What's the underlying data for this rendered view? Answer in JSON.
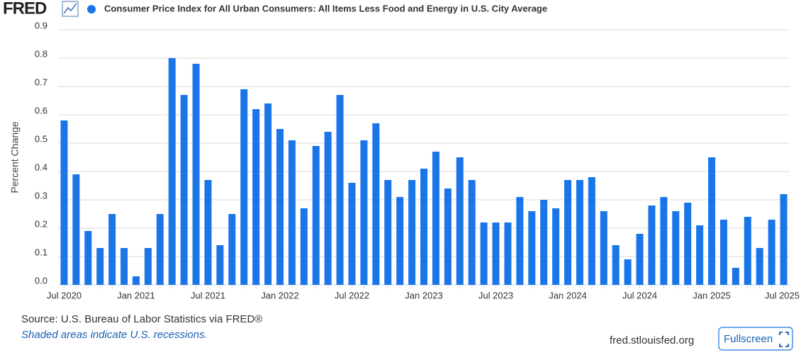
{
  "header": {
    "logo": "FRED"
  },
  "chart_data": {
    "type": "bar",
    "title": "Consumer Price Index for All Urban Consumers: All Items Less Food and Energy in U.S. City Average",
    "y_label": "Percent Change",
    "categories": [
      "Jul 2020",
      null,
      null,
      null,
      null,
      null,
      "Jan 2021",
      null,
      null,
      null,
      null,
      null,
      "Jul 2021",
      null,
      null,
      null,
      null,
      null,
      "Jan 2022",
      null,
      null,
      null,
      null,
      null,
      "Jul 2022",
      null,
      null,
      null,
      null,
      null,
      "Jan 2023",
      null,
      null,
      null,
      null,
      null,
      "Jul 2023",
      null,
      null,
      null,
      null,
      null,
      "Jan 2024",
      null,
      null,
      null,
      null,
      null,
      "Jul 2024",
      null,
      null,
      null,
      null,
      null,
      "Jan 2025",
      null,
      null,
      null,
      null,
      null,
      "Jul 2025"
    ],
    "series": [
      {
        "name": "Consumer Price Index for All Urban Consumers: All Items Less Food and Energy in U.S. City Average",
        "color": "#1a75e8",
        "values": [
          0.58,
          0.39,
          0.19,
          0.13,
          0.25,
          0.13,
          0.03,
          0.13,
          0.25,
          0.8,
          0.67,
          0.78,
          0.37,
          0.14,
          0.25,
          0.69,
          0.62,
          0.64,
          0.55,
          0.51,
          0.27,
          0.49,
          0.54,
          0.67,
          0.36,
          0.51,
          0.57,
          0.37,
          0.31,
          0.37,
          0.41,
          0.47,
          0.34,
          0.45,
          0.37,
          0.22,
          0.22,
          0.22,
          0.31,
          0.26,
          0.3,
          0.27,
          0.37,
          0.37,
          0.38,
          0.26,
          0.14,
          0.09,
          0.18,
          0.28,
          0.31,
          0.26,
          0.29,
          0.21,
          0.45,
          0.23,
          0.06,
          0.24,
          0.13,
          0.23,
          0.32
        ]
      }
    ],
    "ylim": [
      0,
      0.9
    ],
    "yticks": [
      {
        "value": 0,
        "label": "0.0"
      },
      0.1,
      0.2,
      0.3,
      0.4,
      0.5,
      0.6,
      0.7,
      0.8,
      0.9
    ],
    "grid": true
  },
  "footer": {
    "source": "Source: U.S. Bureau of Labor Statistics via FRED®",
    "note": "Shaded areas indicate U.S. recessions.",
    "site": "fred.stlouisfed.org",
    "button": "Fullscreen"
  }
}
